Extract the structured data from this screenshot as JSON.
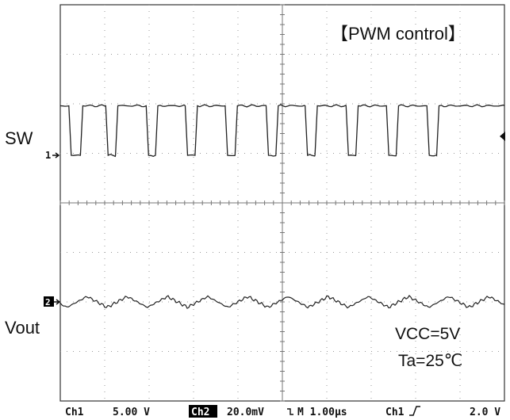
{
  "title_tag": "【PWM control】",
  "channel_labels": {
    "sw": "SW",
    "vout": "Vout",
    "ch1_marker": "1",
    "ch2_marker": "2"
  },
  "conditions": {
    "vcc": "VCC=5V",
    "ta": "Ta=25℃"
  },
  "status_bar": {
    "ch1_name": "Ch1",
    "ch1_scale": "5.00 V",
    "ch2_name": "Ch2",
    "ch2_scale": "20.0mV",
    "timebase": "M 1.00µs",
    "trigger_source": "Ch1",
    "trigger_level": "2.0 V"
  },
  "chart_data": {
    "type": "line",
    "grid": true,
    "grid_divisions": {
      "x": 10,
      "y": 8
    },
    "series": [
      {
        "name": "SW",
        "low_div": 0,
        "high_div": 1.0,
        "edges_div": [
          [
            0.0,
            "H"
          ],
          [
            0.22,
            "L"
          ],
          [
            0.48,
            "H"
          ],
          [
            1.05,
            "L"
          ],
          [
            1.27,
            "H"
          ],
          [
            1.96,
            "L"
          ],
          [
            2.17,
            "H"
          ],
          [
            2.84,
            "L"
          ],
          [
            3.06,
            "H"
          ],
          [
            3.74,
            "L"
          ],
          [
            3.96,
            "H"
          ],
          [
            4.66,
            "L"
          ],
          [
            4.88,
            "H"
          ],
          [
            5.54,
            "L"
          ],
          [
            5.76,
            "H"
          ],
          [
            6.46,
            "L"
          ],
          [
            6.68,
            "H"
          ],
          [
            7.37,
            "L"
          ],
          [
            7.59,
            "H"
          ],
          [
            8.28,
            "L"
          ],
          [
            8.5,
            "H"
          ],
          [
            10.0,
            "H"
          ]
        ]
      },
      {
        "name": "Vout",
        "offset_div": 0,
        "ripple_div_pp": 0.22
      }
    ]
  }
}
